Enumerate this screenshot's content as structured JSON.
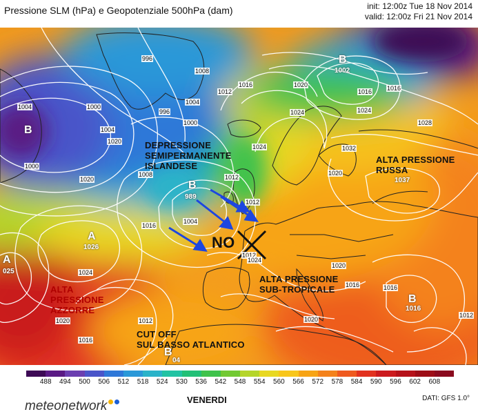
{
  "header": {
    "title": "Pressione SLM (hPa) e Geopotenziale 500hPa (dam)",
    "init": "init: 12:00z Tue 18 Nov 2014",
    "valid": "valid: 12:00z Fri 21 Nov 2014"
  },
  "annotations": {
    "depressione": [
      "DEPRESSIONE",
      "SEMIPERMANENTE",
      "ISLANDESE"
    ],
    "alta_russa": [
      "ALTA PRESSIONE",
      "RUSSA"
    ],
    "alta_subtropicale": [
      "ALTA PRESSIONE",
      "SUB-TROPICALE"
    ],
    "alta_azzorre": [
      "ALTA",
      "PRESSIONE",
      "AZZORRE"
    ],
    "cut_off": [
      "CUT OFF",
      "SUL BASSO ATLANTICO"
    ],
    "no_label": "NO"
  },
  "pressure_centers": [
    {
      "letter": "B",
      "value": "1002"
    },
    {
      "letter": "B",
      "value": "989"
    },
    {
      "letter": "A",
      "value": "1026"
    },
    {
      "letter": "A",
      "value": "025"
    },
    {
      "letter": "A",
      "value": "1037"
    },
    {
      "letter": "B",
      "value": ""
    },
    {
      "letter": "B",
      "value": "1016"
    },
    {
      "letter": "B",
      "value": "04"
    }
  ],
  "isobar_labels": [
    "996",
    "1004",
    "1000",
    "996",
    "1008",
    "1000",
    "1004",
    "1016",
    "1012",
    "1004",
    "1000",
    "1020",
    "1024",
    "1012",
    "1016",
    "1008",
    "1004",
    "1020",
    "1024",
    "1012",
    "1024",
    "1016",
    "1028",
    "1032",
    "1020",
    "1016",
    "1012",
    "1024",
    "1020",
    "1016",
    "1012",
    "1020",
    "1016",
    "1020",
    "1016",
    "1012",
    "1024",
    "1020"
  ],
  "colorbar": {
    "ticks": [
      "488",
      "494",
      "500",
      "506",
      "512",
      "518",
      "524",
      "530",
      "536",
      "542",
      "548",
      "554",
      "560",
      "566",
      "572",
      "578",
      "584",
      "590",
      "596",
      "602",
      "608"
    ],
    "colors": [
      "#3d0a55",
      "#5a1a84",
      "#6b3fb0",
      "#4a55c9",
      "#2f78d8",
      "#2a98d8",
      "#2ab3c9",
      "#22c3a3",
      "#23c077",
      "#3fc24b",
      "#72c933",
      "#b5d52a",
      "#e8d822",
      "#f8c61a",
      "#f7a415",
      "#f4821b",
      "#ef5a1f",
      "#e2321f",
      "#cc1b1e",
      "#b6121a",
      "#9d0d17",
      "#8a0a1e"
    ]
  },
  "footer": {
    "logo": "meteonetwork",
    "day": "VENERDI",
    "source": "DATI: GFS 1.0°"
  },
  "colors": {
    "land_border": "#222222",
    "isobar": "#ffffff",
    "arrow": "#1d46e0"
  }
}
